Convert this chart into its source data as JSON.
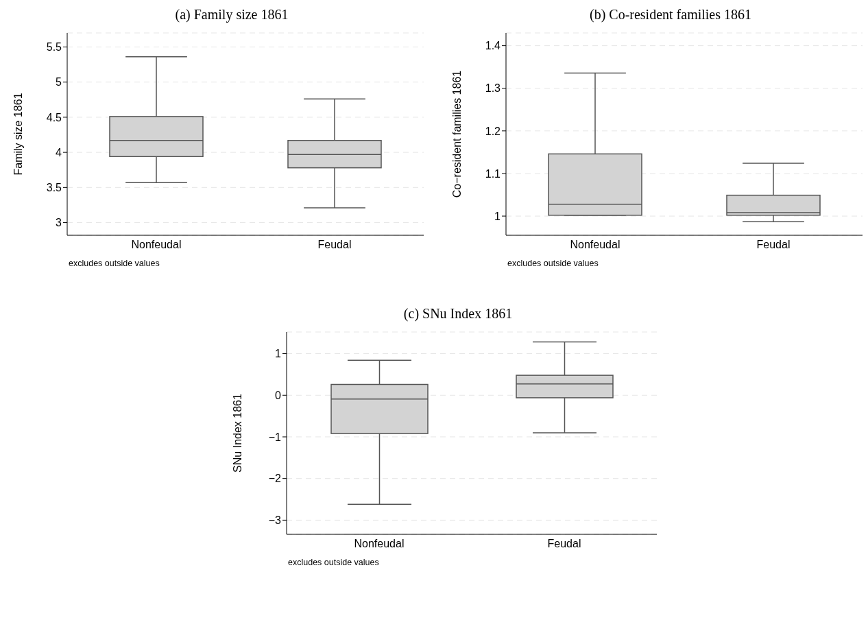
{
  "chart_data": [
    {
      "type": "box",
      "title": "(a) Family size 1861",
      "ylabel": "Family size 1861",
      "categories": [
        "Nonfeudal",
        "Feudal"
      ],
      "boxes": [
        {
          "low": 3.57,
          "q1": 3.94,
          "median": 4.17,
          "q3": 4.51,
          "high": 5.36
        },
        {
          "low": 3.21,
          "q1": 3.78,
          "median": 3.97,
          "q3": 4.17,
          "high": 4.76
        }
      ],
      "color": "#d3d3d3",
      "ylim": [
        2.82,
        5.7
      ],
      "yticks": [
        3,
        3.5,
        4,
        4.5,
        5,
        5.5
      ],
      "grid": "y",
      "annotations": [
        "excludes outside values"
      ]
    },
    {
      "type": "box",
      "title": "(b) Co-resident families 1861",
      "ylabel": "Co−resident families 1861",
      "categories": [
        "Nonfeudal",
        "Feudal"
      ],
      "boxes": [
        {
          "low": 1.002,
          "q1": 1.002,
          "median": 1.028,
          "q3": 1.146,
          "high": 1.336
        },
        {
          "low": 0.987,
          "q1": 1.002,
          "median": 1.008,
          "q3": 1.049,
          "high": 1.124
        }
      ],
      "color": "#d3d3d3",
      "ylim": [
        0.955,
        1.43
      ],
      "yticks": [
        1,
        1.1,
        1.2,
        1.3,
        1.4
      ],
      "grid": "y",
      "annotations": [
        "excludes outside values"
      ]
    },
    {
      "type": "box",
      "title": "(c) SNu Index 1861",
      "ylabel": "SNu Index 1861",
      "categories": [
        "Nonfeudal",
        "Feudal"
      ],
      "boxes": [
        {
          "low": -2.62,
          "q1": -0.92,
          "median": -0.09,
          "q3": 0.26,
          "high": 0.84
        },
        {
          "low": -0.9,
          "q1": -0.06,
          "median": 0.27,
          "q3": 0.48,
          "high": 1.28
        }
      ],
      "color": "#d3d3d3",
      "ylim": [
        -3.34,
        1.52
      ],
      "yticks": [
        {
          "value": -3,
          "label": "−3"
        },
        {
          "value": -2,
          "label": "−2"
        },
        {
          "value": -1,
          "label": "−1"
        },
        0,
        1
      ],
      "grid": "y",
      "annotations": [
        "excludes outside values"
      ]
    }
  ]
}
